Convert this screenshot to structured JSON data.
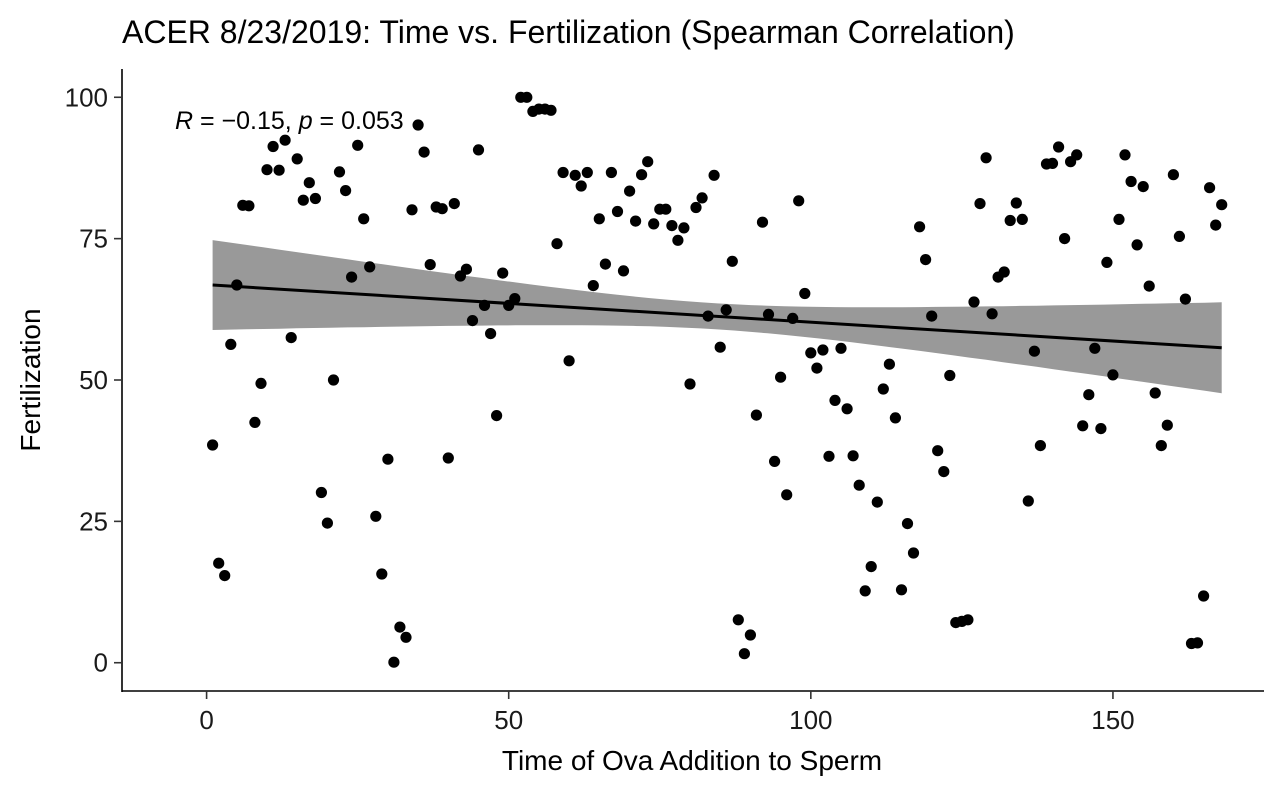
{
  "chart_data": {
    "type": "scatter",
    "title": "ACER 8/23/2019: Time vs. Fertilization (Spearman Correlation)",
    "xlabel": "Time of Ova Addition to Sperm",
    "ylabel": "Fertilization",
    "xlim": [
      -14,
      175
    ],
    "ylim": [
      -5,
      105
    ],
    "xticks": [
      0,
      50,
      100,
      150
    ],
    "yticks": [
      0,
      25,
      50,
      75,
      100
    ],
    "grid": false,
    "legend": "none",
    "annotation": {
      "r_symbol": "R",
      "r_text": " = −0.15, ",
      "p_symbol": "p",
      "p_text": " = 0.053",
      "x": 1,
      "y": 95
    },
    "trend": {
      "x": [
        1,
        168
      ],
      "y": [
        66.8,
        55.7
      ],
      "ci_lower": [
        58.9,
        47.7
      ],
      "ci_upper": [
        74.8,
        63.6
      ],
      "ci_mid_x": 84,
      "ci_mid_half_width": 2.3
    },
    "points": [
      [
        1,
        38.5
      ],
      [
        2,
        17.6
      ],
      [
        3,
        15.4
      ],
      [
        4,
        56.3
      ],
      [
        5,
        66.8
      ],
      [
        6,
        80.9
      ],
      [
        7,
        80.8
      ],
      [
        8,
        42.5
      ],
      [
        9,
        49.4
      ],
      [
        10,
        87.2
      ],
      [
        11,
        91.3
      ],
      [
        12,
        87.1
      ],
      [
        13,
        92.4
      ],
      [
        14,
        57.5
      ],
      [
        15,
        89.1
      ],
      [
        16,
        81.8
      ],
      [
        17,
        84.9
      ],
      [
        18,
        82.1
      ],
      [
        19,
        30.1
      ],
      [
        20,
        24.7
      ],
      [
        21,
        50.0
      ],
      [
        22,
        86.8
      ],
      [
        23,
        83.5
      ],
      [
        24,
        68.2
      ],
      [
        25,
        91.5
      ],
      [
        26,
        78.5
      ],
      [
        27,
        70.0
      ],
      [
        28,
        25.9
      ],
      [
        29,
        15.7
      ],
      [
        30,
        36.0
      ],
      [
        31,
        0.1
      ],
      [
        32,
        6.3
      ],
      [
        33,
        4.5
      ],
      [
        34,
        80.1
      ],
      [
        35,
        95.1
      ],
      [
        36,
        90.3
      ],
      [
        37,
        70.4
      ],
      [
        38,
        80.6
      ],
      [
        39,
        80.3
      ],
      [
        40,
        36.2
      ],
      [
        41,
        81.2
      ],
      [
        42,
        68.4
      ],
      [
        43,
        69.6
      ],
      [
        44,
        60.5
      ],
      [
        45,
        90.7
      ],
      [
        46,
        63.2
      ],
      [
        47,
        58.2
      ],
      [
        48,
        43.7
      ],
      [
        49,
        68.9
      ],
      [
        50,
        63.2
      ],
      [
        51,
        64.4
      ],
      [
        52,
        100.0
      ],
      [
        53,
        100.0
      ],
      [
        54,
        97.5
      ],
      [
        55,
        97.9
      ],
      [
        56,
        97.9
      ],
      [
        57,
        97.7
      ],
      [
        58,
        74.1
      ],
      [
        59,
        86.7
      ],
      [
        60,
        53.4
      ],
      [
        61,
        86.2
      ],
      [
        62,
        84.3
      ],
      [
        63,
        86.7
      ],
      [
        64,
        66.7
      ],
      [
        65,
        78.5
      ],
      [
        66,
        70.5
      ],
      [
        67,
        86.7
      ],
      [
        68,
        79.8
      ],
      [
        69,
        69.3
      ],
      [
        70,
        83.4
      ],
      [
        71,
        78.1
      ],
      [
        72,
        86.3
      ],
      [
        73,
        88.6
      ],
      [
        74,
        77.6
      ],
      [
        75,
        80.2
      ],
      [
        76,
        80.2
      ],
      [
        77,
        77.3
      ],
      [
        78,
        74.7
      ],
      [
        79,
        76.9
      ],
      [
        80,
        49.3
      ],
      [
        81,
        80.5
      ],
      [
        82,
        82.2
      ],
      [
        83,
        61.3
      ],
      [
        84,
        86.2
      ],
      [
        85,
        55.8
      ],
      [
        86,
        62.4
      ],
      [
        87,
        71.0
      ],
      [
        88,
        7.6
      ],
      [
        89,
        1.6
      ],
      [
        90,
        4.9
      ],
      [
        91,
        43.8
      ],
      [
        92,
        77.9
      ],
      [
        93,
        61.6
      ],
      [
        94,
        35.6
      ],
      [
        95,
        50.5
      ],
      [
        96,
        29.7
      ],
      [
        97,
        60.9
      ],
      [
        98,
        81.7
      ],
      [
        99,
        65.3
      ],
      [
        100,
        54.8
      ],
      [
        101,
        52.1
      ],
      [
        102,
        55.3
      ],
      [
        103,
        36.5
      ],
      [
        104,
        46.4
      ],
      [
        105,
        55.6
      ],
      [
        106,
        44.9
      ],
      [
        107,
        36.6
      ],
      [
        108,
        31.4
      ],
      [
        109,
        12.7
      ],
      [
        110,
        17.0
      ],
      [
        111,
        28.4
      ],
      [
        112,
        48.4
      ],
      [
        113,
        52.8
      ],
      [
        114,
        43.3
      ],
      [
        115,
        12.9
      ],
      [
        116,
        24.6
      ],
      [
        117,
        19.4
      ],
      [
        118,
        77.1
      ],
      [
        119,
        71.3
      ],
      [
        120,
        61.3
      ],
      [
        121,
        37.5
      ],
      [
        122,
        33.8
      ],
      [
        123,
        50.8
      ],
      [
        124,
        7.1
      ],
      [
        125,
        7.3
      ],
      [
        126,
        7.6
      ],
      [
        127,
        63.8
      ],
      [
        128,
        81.2
      ],
      [
        129,
        89.3
      ],
      [
        130,
        61.7
      ],
      [
        131,
        68.2
      ],
      [
        132,
        69.1
      ],
      [
        133,
        78.2
      ],
      [
        134,
        81.3
      ],
      [
        135,
        78.4
      ],
      [
        136,
        28.6
      ],
      [
        137,
        55.1
      ],
      [
        138,
        38.4
      ],
      [
        139,
        88.2
      ],
      [
        140,
        88.3
      ],
      [
        141,
        91.2
      ],
      [
        142,
        75.0
      ],
      [
        143,
        88.6
      ],
      [
        144,
        89.8
      ],
      [
        145,
        41.9
      ],
      [
        146,
        47.4
      ],
      [
        147,
        55.6
      ],
      [
        148,
        41.4
      ],
      [
        149,
        70.8
      ],
      [
        150,
        50.9
      ],
      [
        151,
        78.4
      ],
      [
        152,
        89.8
      ],
      [
        153,
        85.1
      ],
      [
        154,
        73.9
      ],
      [
        155,
        84.2
      ],
      [
        156,
        66.6
      ],
      [
        157,
        47.7
      ],
      [
        158,
        38.4
      ],
      [
        159,
        42.0
      ],
      [
        160,
        86.3
      ],
      [
        161,
        75.4
      ],
      [
        162,
        64.3
      ],
      [
        163,
        3.4
      ],
      [
        164,
        3.5
      ],
      [
        165,
        11.8
      ],
      [
        166,
        84.0
      ],
      [
        167,
        77.4
      ],
      [
        168,
        81.0
      ]
    ]
  }
}
